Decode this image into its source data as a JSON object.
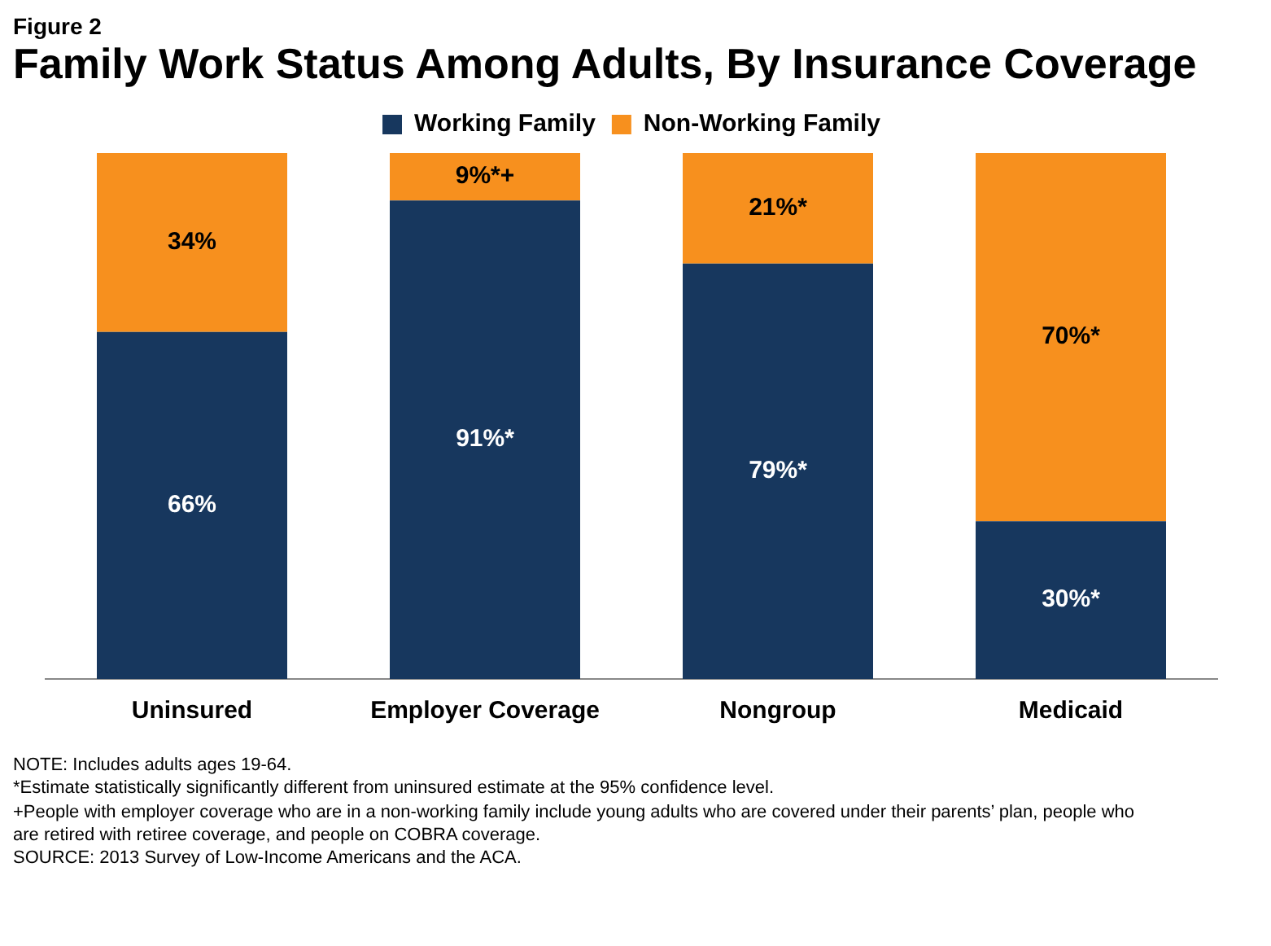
{
  "chart_data": {
    "type": "bar",
    "subtitle": "Figure 2",
    "title": "Family Work Status Among Adults, By Insurance Coverage",
    "categories": [
      "Uninsured",
      "Employer Coverage",
      "Nongroup",
      "Medicaid"
    ],
    "stacked": true,
    "legend": "top",
    "grid": false,
    "series": [
      {
        "name": "Working Family",
        "color": "#17375e",
        "values": [
          66,
          91,
          79,
          30
        ],
        "value_labels": [
          "66%",
          "91%*",
          "79%*",
          "30%*"
        ]
      },
      {
        "name": "Non-Working Family",
        "color": "#f7901e",
        "values": [
          34,
          9,
          21,
          70
        ],
        "value_labels": [
          "34%",
          "9%*+",
          "21%*",
          "70%*"
        ]
      }
    ],
    "annotations": [
      "NOTE: Includes adults ages 19-64.",
      "*Estimate statistically significantly different from uninsured estimate  at the 95% confidence level.",
      "+People with employer coverage who are in a non-working family include young adults who are covered under their parents’ plan, people who are retired with retiree coverage, and people on COBRA coverage.",
      "SOURCE: 2013 Survey of Low-Income Americans and the ACA."
    ]
  }
}
